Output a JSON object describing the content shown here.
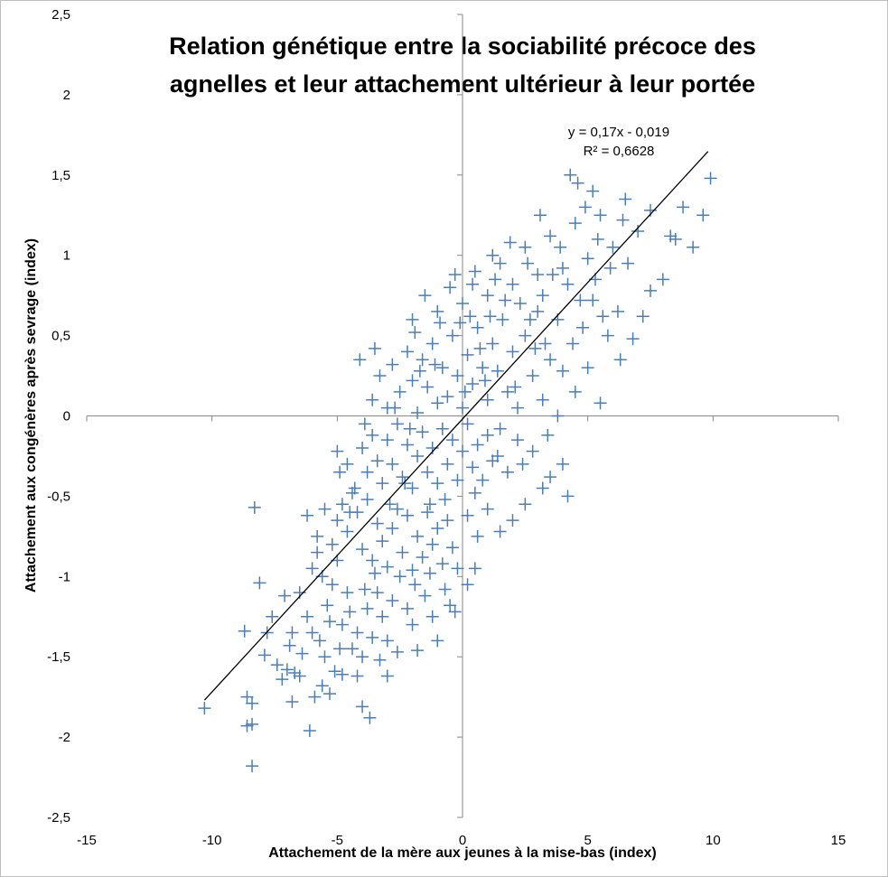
{
  "chart_data": {
    "type": "scatter",
    "title_lines": [
      "Relation génétique entre la sociabilité précoce des",
      "agnelles et leur attachement ultérieur à leur portée"
    ],
    "xlabel": "Attachement de la mère aux jeunes à la mise-bas (index)",
    "ylabel": "Attachement aux congénères après sevrage (index)",
    "xlim": [
      -15,
      15
    ],
    "ylim": [
      -2.5,
      2.5
    ],
    "xticks": [
      -15,
      -10,
      -5,
      0,
      5,
      10,
      15
    ],
    "yticks": [
      -2.5,
      -2,
      -1.5,
      -1,
      -0.5,
      0,
      0.5,
      1,
      1.5,
      2,
      2.5
    ],
    "xtick_labels": [
      "-15",
      "-10",
      "-5",
      "0",
      "5",
      "10",
      "15"
    ],
    "ytick_labels": [
      "-2,5",
      "-2",
      "-1,5",
      "-1",
      "-0,5",
      "0",
      "0,5",
      "1",
      "1,5",
      "2",
      "2,5"
    ],
    "grid": false,
    "marker": "plus",
    "marker_color": "#4a7ebb",
    "trendline": {
      "slope": 0.17,
      "intercept": -0.019,
      "x_range": [
        -10.3,
        9.8
      ],
      "color": "#000000",
      "equation_label": "y = 0,17x - 0,019",
      "r2_label": "R² = 0,6628"
    },
    "series": [
      {
        "points": [
          [
            -10.3,
            -1.82
          ],
          [
            -8.4,
            -2.18
          ],
          [
            -8.6,
            -1.93
          ],
          [
            -8.4,
            -1.92
          ],
          [
            -8.6,
            -1.75
          ],
          [
            -8.4,
            -1.79
          ],
          [
            -8.7,
            -1.34
          ],
          [
            -7.9,
            -1.49
          ],
          [
            -8.1,
            -1.04
          ],
          [
            -7.8,
            -1.35
          ],
          [
            -8.3,
            -0.57
          ],
          [
            -7.1,
            -1.12
          ],
          [
            -7.2,
            -1.64
          ],
          [
            -7.0,
            -1.58
          ],
          [
            -6.8,
            -1.78
          ],
          [
            -6.9,
            -1.43
          ],
          [
            -6.7,
            -1.6
          ],
          [
            -6.5,
            -1.62
          ],
          [
            -6.1,
            -1.96
          ],
          [
            -5.9,
            -1.75
          ],
          [
            -5.6,
            -1.68
          ],
          [
            -5.3,
            -1.73
          ],
          [
            -5.1,
            -1.59
          ],
          [
            -4.8,
            -1.61
          ],
          [
            -4.2,
            -1.62
          ],
          [
            -4.0,
            -1.81
          ],
          [
            -3.7,
            -1.88
          ],
          [
            -3.0,
            -1.62
          ],
          [
            -6.5,
            -1.1
          ],
          [
            -6.2,
            -1.25
          ],
          [
            -6.0,
            -0.95
          ],
          [
            -5.8,
            -0.85
          ],
          [
            -5.6,
            -1.0
          ],
          [
            -5.4,
            -1.18
          ],
          [
            -5.2,
            -1.05
          ],
          [
            -5.0,
            -0.9
          ],
          [
            -4.8,
            -1.3
          ],
          [
            -4.6,
            -1.1
          ],
          [
            -4.4,
            -1.45
          ],
          [
            -4.2,
            -1.35
          ],
          [
            -4.0,
            -1.5
          ],
          [
            -3.8,
            -1.2
          ],
          [
            -3.6,
            -1.38
          ],
          [
            -3.4,
            -1.1
          ],
          [
            -3.2,
            -1.25
          ],
          [
            -3.0,
            -1.4
          ],
          [
            -2.8,
            -1.15
          ],
          [
            -2.6,
            -1.47
          ],
          [
            -2.2,
            -1.2
          ],
          [
            -1.8,
            -1.46
          ],
          [
            -1.5,
            -1.12
          ],
          [
            -1.0,
            -1.4
          ],
          [
            -0.5,
            -1.18
          ],
          [
            0.2,
            -1.05
          ],
          [
            -0.3,
            -1.22
          ],
          [
            -6.2,
            -0.62
          ],
          [
            -5.8,
            -0.75
          ],
          [
            -5.5,
            -0.58
          ],
          [
            -5.2,
            -0.8
          ],
          [
            -5.0,
            -0.65
          ],
          [
            -4.8,
            -0.55
          ],
          [
            -4.6,
            -0.72
          ],
          [
            -4.4,
            -0.48
          ],
          [
            -4.2,
            -0.6
          ],
          [
            -4.0,
            -0.83
          ],
          [
            -3.8,
            -0.52
          ],
          [
            -3.6,
            -0.9
          ],
          [
            -3.4,
            -0.67
          ],
          [
            -3.2,
            -0.78
          ],
          [
            -3.0,
            -0.94
          ],
          [
            -2.8,
            -0.7
          ],
          [
            -2.6,
            -0.58
          ],
          [
            -2.4,
            -0.85
          ],
          [
            -2.2,
            -0.62
          ],
          [
            -2.0,
            -0.96
          ],
          [
            -1.8,
            -0.75
          ],
          [
            -1.6,
            -0.88
          ],
          [
            -1.4,
            -0.6
          ],
          [
            -1.2,
            -0.8
          ],
          [
            -1.0,
            -0.7
          ],
          [
            -0.8,
            -0.92
          ],
          [
            -0.6,
            -0.65
          ],
          [
            -0.4,
            -0.82
          ],
          [
            -0.2,
            -0.95
          ],
          [
            0.2,
            -0.62
          ],
          [
            0.6,
            -0.75
          ],
          [
            1.0,
            -0.58
          ],
          [
            1.5,
            -0.72
          ],
          [
            2.0,
            -0.65
          ],
          [
            2.5,
            -0.55
          ],
          [
            3.2,
            -0.45
          ],
          [
            4.2,
            -0.5
          ],
          [
            4.0,
            -0.3
          ],
          [
            3.5,
            -0.38
          ],
          [
            -4.6,
            -0.3
          ],
          [
            -4.3,
            -0.45
          ],
          [
            -4.0,
            -0.2
          ],
          [
            -3.8,
            -0.35
          ],
          [
            -3.6,
            -0.12
          ],
          [
            -3.4,
            -0.28
          ],
          [
            -3.2,
            -0.42
          ],
          [
            -3.0,
            -0.15
          ],
          [
            -2.8,
            -0.3
          ],
          [
            -2.6,
            -0.05
          ],
          [
            -2.4,
            -0.38
          ],
          [
            -2.2,
            -0.18
          ],
          [
            -2.0,
            -0.45
          ],
          [
            -1.8,
            -0.25
          ],
          [
            -1.6,
            -0.1
          ],
          [
            -1.4,
            -0.35
          ],
          [
            -1.2,
            -0.2
          ],
          [
            -1.0,
            -0.42
          ],
          [
            -0.8,
            -0.08
          ],
          [
            -0.6,
            -0.3
          ],
          [
            -0.4,
            -0.15
          ],
          [
            -0.2,
            -0.4
          ],
          [
            0.0,
            -0.22
          ],
          [
            0.2,
            -0.05
          ],
          [
            0.4,
            -0.32
          ],
          [
            0.6,
            -0.18
          ],
          [
            0.8,
            -0.4
          ],
          [
            1.0,
            -0.12
          ],
          [
            1.2,
            -0.28
          ],
          [
            1.5,
            -0.08
          ],
          [
            1.8,
            -0.35
          ],
          [
            2.2,
            -0.15
          ],
          [
            2.8,
            -0.22
          ],
          [
            -3.6,
            0.1
          ],
          [
            -3.3,
            0.25
          ],
          [
            -3.0,
            0.05
          ],
          [
            -2.8,
            0.32
          ],
          [
            -2.5,
            0.15
          ],
          [
            -2.2,
            0.4
          ],
          [
            -2.0,
            0.22
          ],
          [
            -1.8,
            0.02
          ],
          [
            -1.6,
            0.35
          ],
          [
            -1.4,
            0.18
          ],
          [
            -1.2,
            0.45
          ],
          [
            -1.0,
            0.08
          ],
          [
            -0.8,
            0.3
          ],
          [
            -0.6,
            0.12
          ],
          [
            -0.4,
            0.5
          ],
          [
            -0.2,
            0.25
          ],
          [
            0.0,
            0.05
          ],
          [
            0.2,
            0.38
          ],
          [
            0.4,
            0.2
          ],
          [
            0.6,
            0.55
          ],
          [
            0.8,
            0.3
          ],
          [
            1.0,
            0.1
          ],
          [
            1.2,
            0.45
          ],
          [
            1.4,
            0.28
          ],
          [
            1.6,
            0.6
          ],
          [
            1.8,
            0.15
          ],
          [
            2.0,
            0.4
          ],
          [
            2.2,
            0.05
          ],
          [
            2.5,
            0.5
          ],
          [
            2.8,
            0.25
          ],
          [
            3.0,
            0.65
          ],
          [
            3.2,
            0.1
          ],
          [
            3.5,
            0.35
          ],
          [
            3.8,
            0.0
          ],
          [
            4.0,
            0.28
          ],
          [
            4.5,
            0.15
          ],
          [
            5.0,
            0.3
          ],
          [
            5.5,
            0.08
          ],
          [
            -2.0,
            0.6
          ],
          [
            -1.5,
            0.75
          ],
          [
            -1.0,
            0.65
          ],
          [
            -0.5,
            0.8
          ],
          [
            0.0,
            0.7
          ],
          [
            0.5,
            0.9
          ],
          [
            1.0,
            0.75
          ],
          [
            1.5,
            0.95
          ],
          [
            2.0,
            0.82
          ],
          [
            2.5,
            1.05
          ],
          [
            3.0,
            0.88
          ],
          [
            3.5,
            1.12
          ],
          [
            4.0,
            0.92
          ],
          [
            4.5,
            1.2
          ],
          [
            5.0,
            0.98
          ],
          [
            5.5,
            1.25
          ],
          [
            6.0,
            1.05
          ],
          [
            6.5,
            1.35
          ],
          [
            7.0,
            1.15
          ],
          [
            7.5,
            1.28
          ],
          [
            3.2,
            0.75
          ],
          [
            3.8,
            0.6
          ],
          [
            4.2,
            0.82
          ],
          [
            4.8,
            0.55
          ],
          [
            5.2,
            0.72
          ],
          [
            5.8,
            0.5
          ],
          [
            6.2,
            0.65
          ],
          [
            6.8,
            0.48
          ],
          [
            7.2,
            0.62
          ],
          [
            7.5,
            0.78
          ],
          [
            8.0,
            0.85
          ],
          [
            8.3,
            1.12
          ],
          [
            8.5,
            1.1
          ],
          [
            8.8,
            1.3
          ],
          [
            9.2,
            1.05
          ],
          [
            9.6,
            1.25
          ],
          [
            9.9,
            1.48
          ],
          [
            4.3,
            1.5
          ],
          [
            4.6,
            1.45
          ],
          [
            5.2,
            1.4
          ],
          [
            6.3,
            0.35
          ],
          [
            5.6,
            0.62
          ],
          [
            -5.0,
            -0.22
          ],
          [
            -4.9,
            -0.35
          ],
          [
            -4.5,
            -0.6
          ],
          [
            -4.1,
            0.35
          ],
          [
            -3.9,
            -0.05
          ],
          [
            -3.5,
            0.42
          ],
          [
            -2.9,
            -0.55
          ],
          [
            -2.3,
            -0.42
          ],
          [
            -1.9,
            0.52
          ],
          [
            -1.3,
            -0.55
          ],
          [
            -0.9,
            0.58
          ],
          [
            -0.1,
            0.58
          ],
          [
            0.3,
            0.62
          ],
          [
            0.7,
            0.42
          ],
          [
            1.1,
            0.62
          ],
          [
            1.3,
            0.85
          ],
          [
            1.7,
            0.72
          ],
          [
            2.3,
            0.7
          ],
          [
            2.7,
            0.6
          ],
          [
            3.3,
            0.45
          ],
          [
            3.6,
            0.88
          ],
          [
            4.4,
            0.45
          ],
          [
            4.7,
            0.72
          ],
          [
            5.3,
            0.85
          ],
          [
            5.9,
            0.92
          ],
          [
            6.6,
            0.95
          ],
          [
            6.4,
            1.22
          ],
          [
            5.4,
            1.1
          ],
          [
            4.9,
            1.3
          ],
          [
            3.9,
            1.05
          ],
          [
            3.1,
            1.25
          ],
          [
            2.6,
            0.95
          ],
          [
            1.9,
            1.08
          ],
          [
            1.2,
            1.0
          ],
          [
            0.4,
            0.82
          ],
          [
            -0.3,
            0.88
          ],
          [
            -2.7,
            0.05
          ],
          [
            -2.1,
            -0.08
          ],
          [
            -1.7,
            0.28
          ],
          [
            -1.1,
            0.32
          ],
          [
            -0.7,
            -0.52
          ],
          [
            0.1,
            0.15
          ],
          [
            0.5,
            -0.48
          ],
          [
            0.9,
            0.22
          ],
          [
            1.4,
            -0.25
          ],
          [
            2.1,
            0.18
          ],
          [
            2.4,
            -0.3
          ],
          [
            2.9,
            0.42
          ],
          [
            3.4,
            -0.12
          ],
          [
            -7.6,
            -1.25
          ],
          [
            -7.4,
            -1.55
          ],
          [
            -6.8,
            -1.35
          ],
          [
            -6.4,
            -1.48
          ],
          [
            -5.7,
            -1.4
          ],
          [
            -5.3,
            -1.28
          ],
          [
            -4.9,
            -1.45
          ],
          [
            -4.5,
            -1.22
          ],
          [
            -3.9,
            -1.08
          ],
          [
            -3.5,
            -0.98
          ],
          [
            -2.5,
            -1.0
          ],
          [
            -1.9,
            -1.05
          ],
          [
            -1.3,
            -0.98
          ],
          [
            -0.7,
            -1.08
          ],
          [
            0.5,
            -0.95
          ],
          [
            -6.0,
            -1.35
          ],
          [
            -5.5,
            -1.5
          ],
          [
            -3.3,
            -1.52
          ],
          [
            -2.0,
            -1.3
          ],
          [
            -1.2,
            -1.25
          ]
        ]
      }
    ]
  }
}
